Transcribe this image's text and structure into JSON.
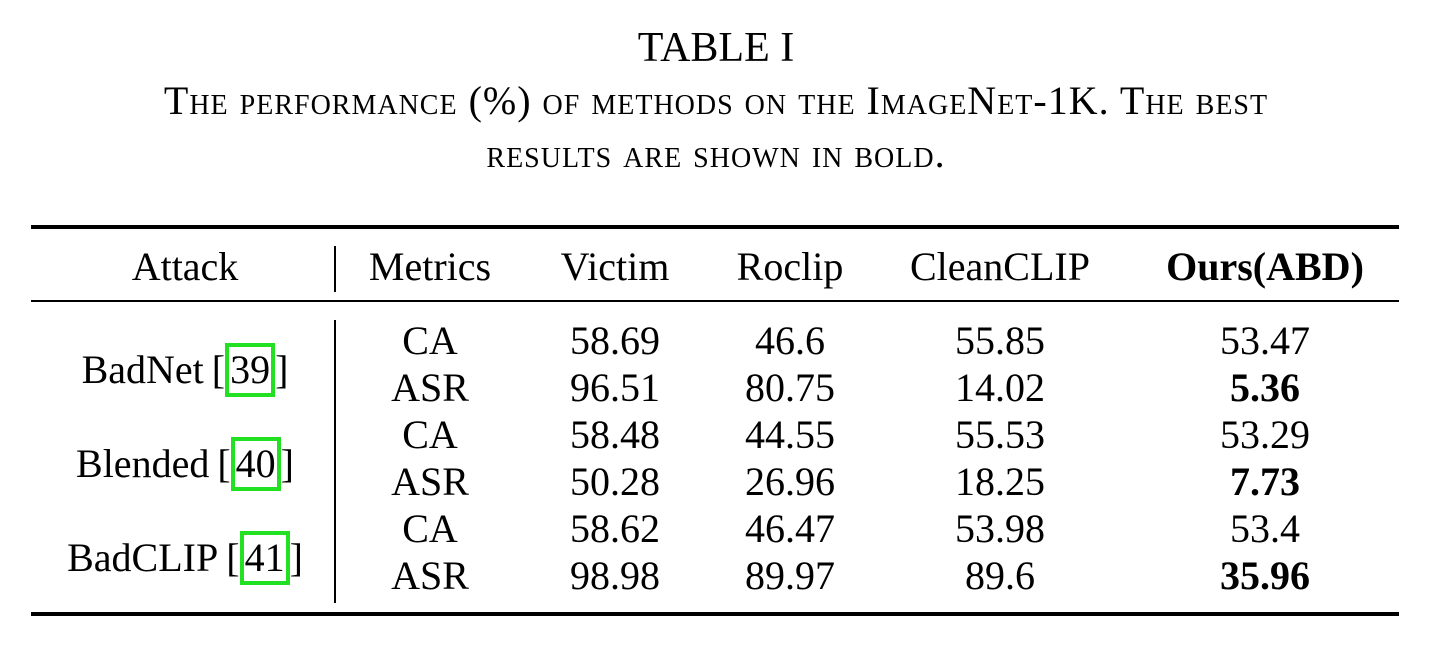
{
  "caption": {
    "label": "TABLE I",
    "line1": "The performance (%) of methods on the ImageNet-1K. The best",
    "line2": "results are shown in bold."
  },
  "table": {
    "headers": {
      "attack": "Attack",
      "metrics": "Metrics",
      "victim": "Victim",
      "roclip": "Roclip",
      "cleanclip": "CleanCLIP",
      "ours": "Ours(ABD)"
    },
    "groups": [
      {
        "attack": "BadNet",
        "ref_open": "[",
        "ref": "39",
        "ref_close": "]",
        "rows": [
          {
            "metric": "CA",
            "victim": "58.69",
            "roclip": "46.6",
            "cleanclip": "55.85",
            "ours": "53.47",
            "ours_bold": false
          },
          {
            "metric": "ASR",
            "victim": "96.51",
            "roclip": "80.75",
            "cleanclip": "14.02",
            "ours": "5.36",
            "ours_bold": true
          }
        ]
      },
      {
        "attack": "Blended",
        "ref_open": "[",
        "ref": "40",
        "ref_close": "]",
        "rows": [
          {
            "metric": "CA",
            "victim": "58.48",
            "roclip": "44.55",
            "cleanclip": "55.53",
            "ours": "53.29",
            "ours_bold": false
          },
          {
            "metric": "ASR",
            "victim": "50.28",
            "roclip": "26.96",
            "cleanclip": "18.25",
            "ours": "7.73",
            "ours_bold": true
          }
        ]
      },
      {
        "attack": "BadCLIP",
        "ref_open": "[",
        "ref": "41",
        "ref_close": "]",
        "rows": [
          {
            "metric": "CA",
            "victim": "58.62",
            "roclip": "46.47",
            "cleanclip": "53.98",
            "ours": "53.4",
            "ours_bold": false
          },
          {
            "metric": "ASR",
            "victim": "98.98",
            "roclip": "89.97",
            "cleanclip": "89.6",
            "ours": "35.96",
            "ours_bold": true
          }
        ]
      }
    ],
    "ref_highlight_color": "#22e022"
  }
}
